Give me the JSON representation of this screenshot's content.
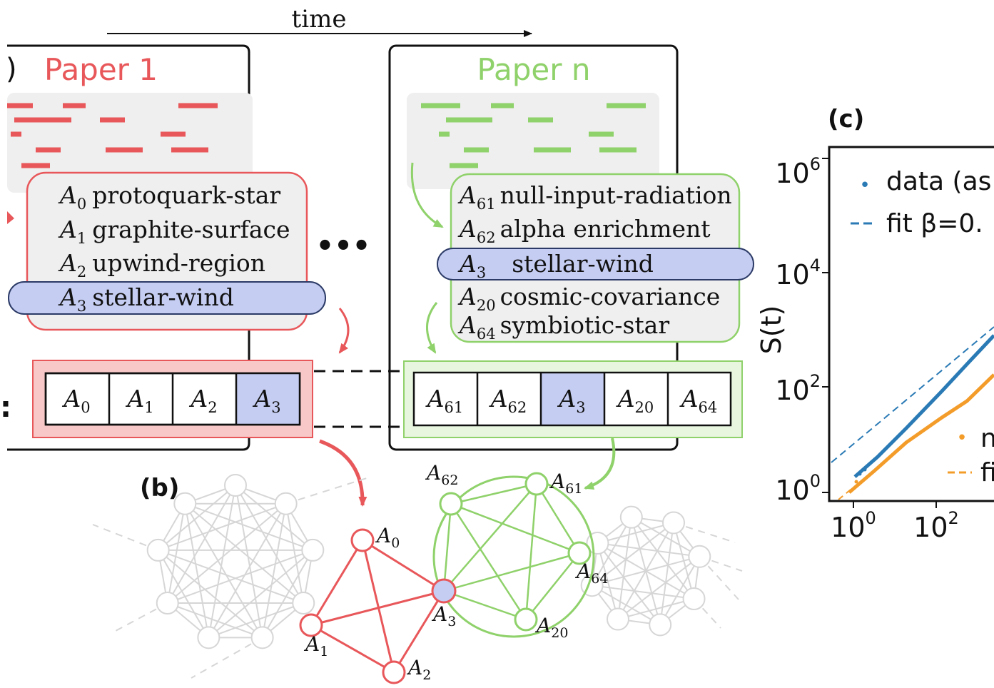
{
  "colors": {
    "red": "#e8575a",
    "red_fill": "#f8c8c8",
    "green": "#8fd16a",
    "green_fill": "#e8f6df",
    "blue_fill": "#c5cdf2",
    "blue_stroke": "#2b3a66",
    "gray_box": "#efefef",
    "gray_node": "#d6d6d6",
    "series_blue": "#2a7ab5",
    "series_orange": "#f39c2a"
  },
  "time_label": "time",
  "panel_a": {
    "label_fragment": ")",
    "seq_label_fragment": ":",
    "dots": "•••",
    "paper1": {
      "title": "Paper 1",
      "concepts": [
        {
          "sym": "A",
          "sub": "0",
          "text": "protoquark-star"
        },
        {
          "sym": "A",
          "sub": "1",
          "text": "graphite-surface"
        },
        {
          "sym": "A",
          "sub": "2",
          "text": "upwind-region"
        },
        {
          "sym": "A",
          "sub": "3",
          "text": "stellar-wind",
          "highlight": true
        }
      ],
      "sequence": [
        {
          "sym": "A",
          "sub": "0"
        },
        {
          "sym": "A",
          "sub": "1"
        },
        {
          "sym": "A",
          "sub": "2"
        },
        {
          "sym": "A",
          "sub": "3",
          "highlight": true
        }
      ]
    },
    "papern": {
      "title": "Paper n",
      "concepts": [
        {
          "sym": "A",
          "sub": "61",
          "text": "null-input-radiation"
        },
        {
          "sym": "A",
          "sub": "62",
          "text": "alpha enrichment"
        },
        {
          "sym": "A",
          "sub": "3",
          "text": "stellar-wind",
          "highlight": true
        },
        {
          "sym": "A",
          "sub": "20",
          "text": "cosmic-covariance"
        },
        {
          "sym": "A",
          "sub": "64",
          "text": "symbiotic-star"
        }
      ],
      "sequence": [
        {
          "sym": "A",
          "sub": "61"
        },
        {
          "sym": "A",
          "sub": "62"
        },
        {
          "sym": "A",
          "sub": "3",
          "highlight": true
        },
        {
          "sym": "A",
          "sub": "20"
        },
        {
          "sym": "A",
          "sub": "64"
        }
      ]
    }
  },
  "panel_b": {
    "label": "(b)",
    "node_labels": [
      {
        "sym": "A",
        "sub": "0"
      },
      {
        "sym": "A",
        "sub": "1"
      },
      {
        "sym": "A",
        "sub": "2"
      },
      {
        "sym": "A",
        "sub": "3"
      },
      {
        "sym": "A",
        "sub": "62"
      },
      {
        "sym": "A",
        "sub": "61"
      },
      {
        "sym": "A",
        "sub": "64"
      },
      {
        "sym": "A",
        "sub": "20"
      }
    ]
  },
  "panel_c": {
    "label": "(c)",
    "ylabel": "S(t)",
    "x_ticks": [
      {
        "base": "10",
        "exp": "0"
      },
      {
        "base": "10",
        "exp": "2"
      }
    ],
    "y_ticks": [
      {
        "base": "10",
        "exp": "6"
      },
      {
        "base": "10",
        "exp": "4"
      },
      {
        "base": "10",
        "exp": "2"
      },
      {
        "base": "10",
        "exp": "0"
      }
    ],
    "legend": [
      {
        "marker": "•",
        "text": "data (as",
        "color": "series_blue"
      },
      {
        "marker": "--",
        "text": "fit β=0.",
        "color": "series_blue"
      },
      {
        "marker": "•",
        "text": "n",
        "color": "series_orange"
      },
      {
        "marker": "--",
        "text": "fi",
        "color": "series_orange"
      }
    ]
  }
}
